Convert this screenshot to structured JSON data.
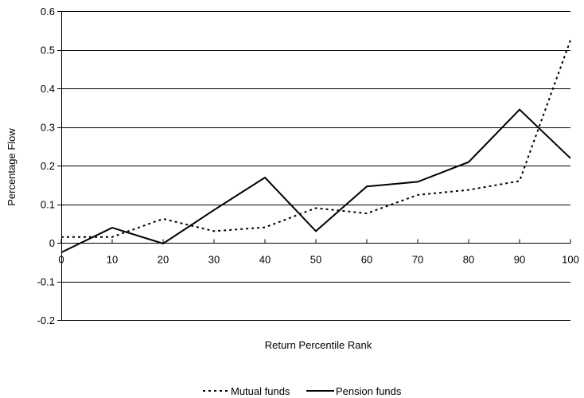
{
  "chart_data": {
    "type": "line",
    "xlabel": "Return Percentile Rank",
    "ylabel": "Percentage Flow",
    "x": [
      0,
      10,
      20,
      30,
      40,
      50,
      60,
      70,
      80,
      90,
      100
    ],
    "ylim": [
      -0.2,
      0.6
    ],
    "yticks": [
      -0.2,
      -0.1,
      0,
      0.1,
      0.2,
      0.3,
      0.4,
      0.5,
      0.6
    ],
    "ytick_labels": [
      "-0.2",
      "-0.1",
      "0",
      "0.1",
      "0.2",
      "0.3",
      "0.4",
      "0.5",
      "0.6"
    ],
    "xtick_labels": [
      "0",
      "10",
      "20",
      "30",
      "40",
      "50",
      "60",
      "70",
      "80",
      "90",
      "100"
    ],
    "grid": "horizontal",
    "legend_position": "bottom",
    "series": [
      {
        "name": "Mutual funds",
        "style": "dotted",
        "color": "#000000",
        "values": [
          0.015,
          0.015,
          0.062,
          0.03,
          0.04,
          0.09,
          0.076,
          0.124,
          0.137,
          0.16,
          0.525
        ]
      },
      {
        "name": "Pension funds",
        "style": "solid",
        "color": "#000000",
        "values": [
          -0.025,
          0.039,
          -0.002,
          0.085,
          0.169,
          0.03,
          0.146,
          0.158,
          0.209,
          0.345,
          0.219
        ]
      }
    ]
  }
}
